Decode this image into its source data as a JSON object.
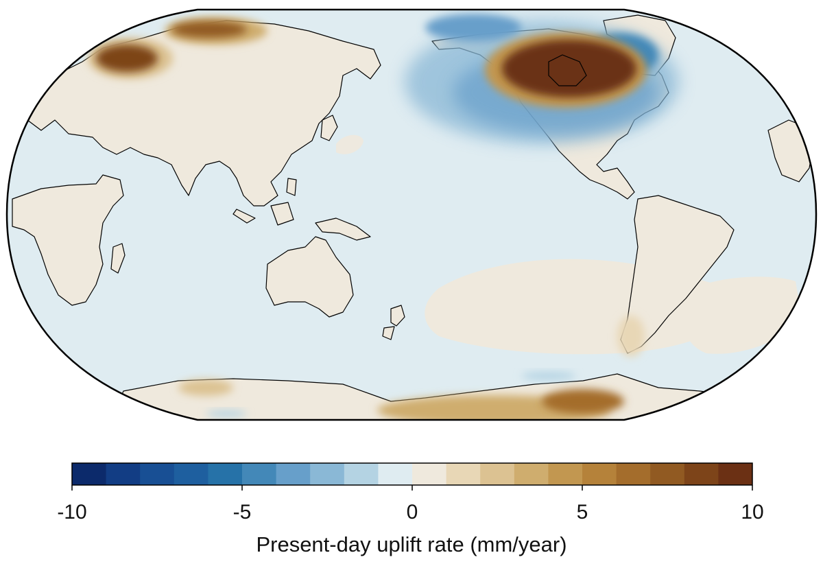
{
  "colorbar": {
    "label": "Present-day uplift rate (mm/year)",
    "min": -10,
    "max": 10,
    "step": 1,
    "ticks": [
      {
        "value": -10,
        "text": "-10"
      },
      {
        "value": -5,
        "text": "-5"
      },
      {
        "value": 0,
        "text": "0"
      },
      {
        "value": 5,
        "text": "5"
      },
      {
        "value": 10,
        "text": "10"
      }
    ],
    "colors": [
      "#0c2a6b",
      "#123d84",
      "#184f94",
      "#1e5f9f",
      "#2672a8",
      "#4388b8",
      "#679fca",
      "#8ab8d6",
      "#b4d3e3",
      "#dfecf1",
      "#efe9dd",
      "#e8d7b6",
      "#dcc292",
      "#cfad6e",
      "#c29750",
      "#b5823a",
      "#a46d2c",
      "#915a22",
      "#7d4419",
      "#6b3014"
    ]
  },
  "map": {
    "projection": "Robinson",
    "central_longitude": 150,
    "colors": {
      "ocean_base": "#dfecf1",
      "land_base": "#efe9dd",
      "coastline": "#000000",
      "frame": "#000000"
    }
  }
}
